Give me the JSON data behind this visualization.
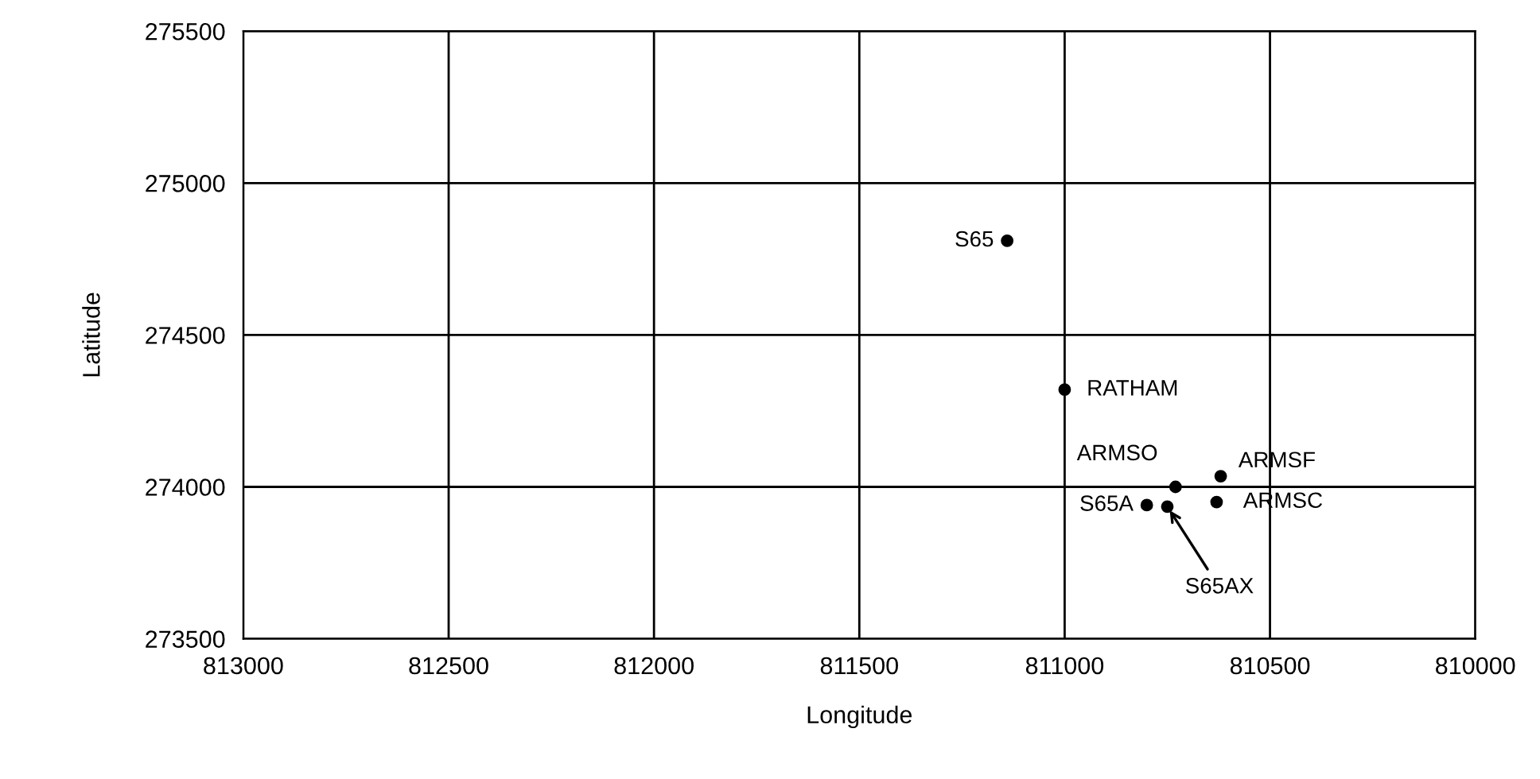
{
  "chart_data": {
    "type": "scatter",
    "xlabel": "Longitude",
    "ylabel": "Latitude",
    "x": [
      811140,
      811000,
      810730,
      810620,
      810630,
      810800,
      810750
    ],
    "values": [
      274810,
      274320,
      274000,
      274035,
      273950,
      273940,
      273935
    ],
    "color": "#000000",
    "marker": "circle",
    "xlim": [
      813000,
      810000
    ],
    "xticks": [
      813000,
      812500,
      812000,
      811500,
      811000,
      810500,
      810000
    ],
    "ylim": [
      273500,
      275500
    ],
    "yticks": [
      273500,
      274000,
      274500,
      275000,
      275500
    ],
    "grid": true,
    "annotations": [
      {
        "text": "S65",
        "x": 811140,
        "y": 274810
      },
      {
        "text": "RATHAM",
        "x": 811000,
        "y": 274320
      },
      {
        "text": "ARMSO",
        "x": 810730,
        "y": 274000
      },
      {
        "text": "ARMSF",
        "x": 810620,
        "y": 274035
      },
      {
        "text": "ARMSC",
        "x": 810630,
        "y": 273950
      },
      {
        "text": "S65A",
        "x": 810800,
        "y": 273940
      },
      {
        "text": "S65AX",
        "x": 810750,
        "y": 273935
      }
    ]
  }
}
